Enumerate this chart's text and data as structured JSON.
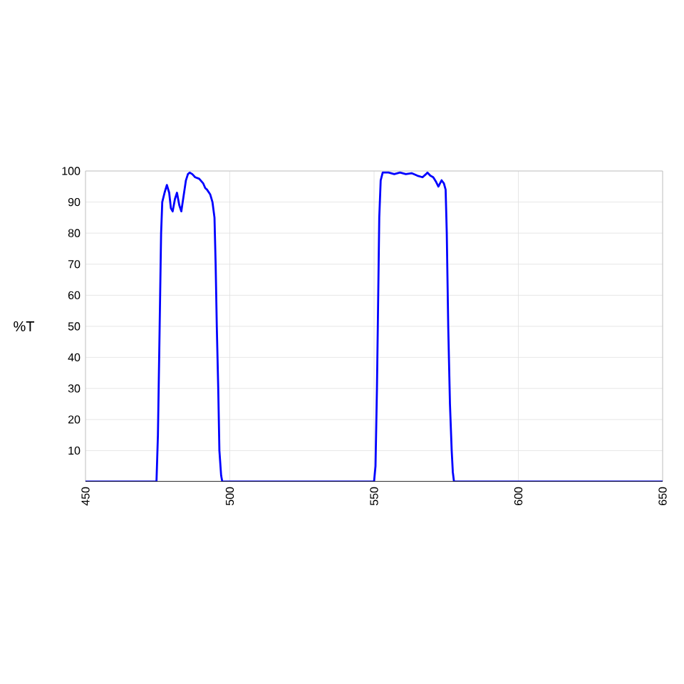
{
  "chart_data": {
    "type": "line",
    "ylabel": "%T",
    "xlim": [
      450,
      650
    ],
    "ylim": [
      0,
      100
    ],
    "xticks": [
      450,
      500,
      550,
      600,
      650
    ],
    "yticks": [
      10,
      20,
      30,
      40,
      50,
      60,
      70,
      80,
      90,
      100
    ],
    "grid": true,
    "marker": "none",
    "line_style": "solid",
    "series": [
      {
        "color": "#0000ff",
        "x": [
          450,
          474.6,
          475.1,
          475.7,
          476.2,
          476.6,
          477.4,
          478.2,
          479.0,
          479.6,
          480.2,
          481.0,
          481.7,
          482.5,
          483.2,
          484.0,
          484.8,
          485.5,
          486.1,
          487.0,
          488.0,
          489.4,
          490.8,
          491.5,
          492.1,
          493.2,
          494.0,
          494.7,
          495.1,
          495.5,
          496.0,
          496.4,
          497.0,
          497.4,
          550,
          550.5,
          551.0,
          551.3,
          551.8,
          552.3,
          553.0,
          555,
          557,
          559,
          561,
          563,
          565,
          566.8,
          568,
          568.5,
          569.5,
          570.5,
          571.5,
          572.3,
          573.4,
          574.2,
          574.8,
          575.2,
          575.7,
          576.3,
          576.9,
          577.3,
          577.7,
          650
        ],
        "values": [
          0,
          0,
          15,
          50,
          80,
          90,
          93,
          95.5,
          93,
          88,
          87,
          91,
          93,
          89,
          87,
          92,
          97,
          99,
          99.5,
          99,
          98,
          97.5,
          96,
          94.5,
          94,
          92.5,
          90,
          85,
          70,
          50,
          30,
          10,
          2,
          0,
          0,
          5,
          30,
          50,
          85,
          97,
          99.5,
          99.5,
          99,
          99.5,
          99,
          99.3,
          98.5,
          98,
          99,
          99.5,
          98.5,
          98,
          96.5,
          95,
          97,
          96,
          94,
          80,
          50,
          25,
          10,
          3,
          0,
          0
        ]
      }
    ]
  }
}
